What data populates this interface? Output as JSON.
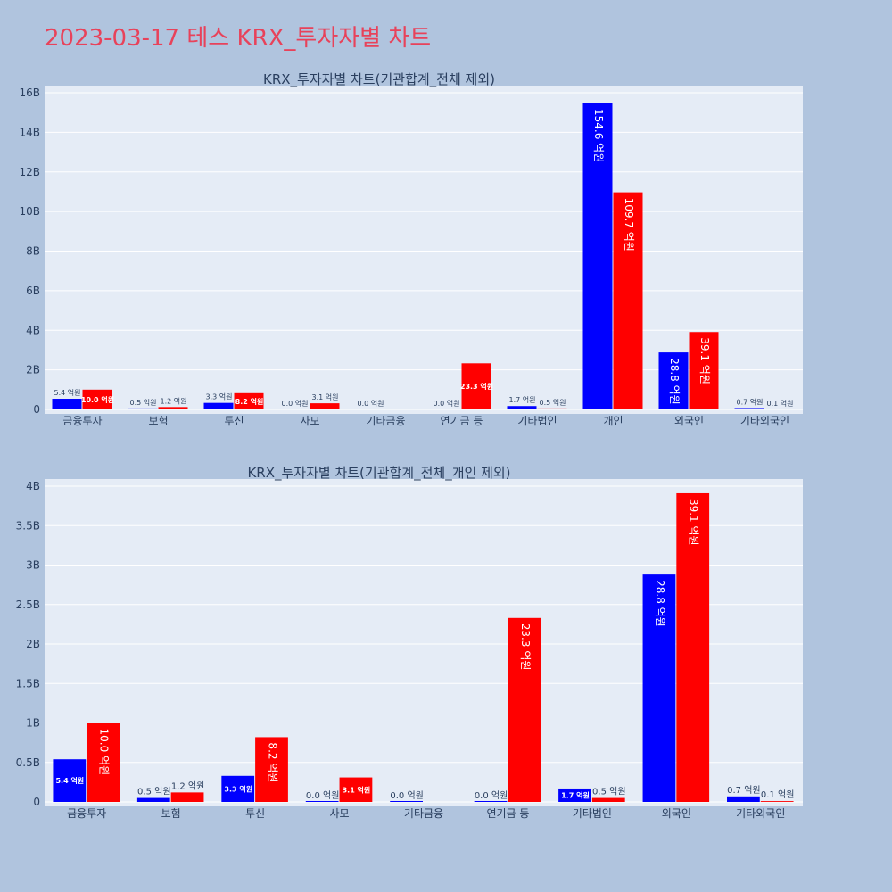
{
  "page": {
    "title": "2023-03-17 테스 KRX_투자자별 차트"
  },
  "colors": {
    "background": "#b0c4de",
    "plot_bg": "#e5ecf6",
    "buy": "#0000ff",
    "sell": "#ff0000",
    "title": "#e8425a",
    "text": "#2a3f5f"
  },
  "chart_data": [
    {
      "type": "bar",
      "title": "KRX_투자자별 차트(기관합계_전체 제외)",
      "categories": [
        "금융투자",
        "보험",
        "투신",
        "사모",
        "기타금융",
        "연기금 등",
        "기타법인",
        "개인",
        "외국인",
        "기타외국인"
      ],
      "series": [
        {
          "color": "#0000ff",
          "values": [
            540000000,
            50000000,
            330000000,
            0,
            0,
            0,
            170000000,
            15460000000,
            2880000000,
            70000000
          ],
          "labels": [
            "5.4 억원",
            "0.5 억원",
            "3.3 억원",
            "0.0 억원",
            "0.0 억원",
            "0.0 억원",
            "1.7 억원",
            "154.6 억원",
            "28.8 억원",
            "0.7 억원"
          ]
        },
        {
          "color": "#ff0000",
          "values": [
            1000000000,
            120000000,
            820000000,
            310000000,
            null,
            2330000000,
            50000000,
            10970000000,
            3910000000,
            10000000
          ],
          "labels": [
            "10.0 억원",
            "1.2 억원",
            "8.2 억원",
            "3.1 억원",
            "",
            "23.3 억원",
            "0.5 억원",
            "109.7 억원",
            "39.1 억원",
            "0.1 억원"
          ]
        }
      ],
      "ylim": [
        0,
        16000000000
      ],
      "yticks": [
        0,
        2000000000,
        4000000000,
        6000000000,
        8000000000,
        10000000000,
        12000000000,
        14000000000,
        16000000000
      ],
      "ytick_labels": [
        "0",
        "2B",
        "4B",
        "6B",
        "8B",
        "10B",
        "12B",
        "14B",
        "16B"
      ],
      "grid": true,
      "legend": "none"
    },
    {
      "type": "bar",
      "title": "KRX_투자자별 차트(기관합계_전체_개인 제외)",
      "categories": [
        "금융투자",
        "보험",
        "투신",
        "사모",
        "기타금융",
        "연기금 등",
        "기타법인",
        "외국인",
        "기타외국인"
      ],
      "series": [
        {
          "color": "#0000ff",
          "values": [
            540000000,
            50000000,
            330000000,
            0,
            0,
            0,
            170000000,
            2880000000,
            70000000
          ],
          "labels": [
            "5.4 억원",
            "0.5 억원",
            "3.3 억원",
            "0.0 억원",
            "0.0 억원",
            "0.0 억원",
            "1.7 억원",
            "28.8 억원",
            "0.7 억원"
          ]
        },
        {
          "color": "#ff0000",
          "values": [
            1000000000,
            120000000,
            820000000,
            310000000,
            null,
            2330000000,
            50000000,
            3910000000,
            10000000
          ],
          "labels": [
            "10.0 억원",
            "1.2 억원",
            "8.2 억원",
            "3.1 억원",
            "",
            "23.3 억원",
            "0.5 억원",
            "39.1 억원",
            "0.1 억원"
          ]
        }
      ],
      "ylim": [
        0,
        4000000000
      ],
      "yticks": [
        0,
        500000000,
        1000000000,
        1500000000,
        2000000000,
        2500000000,
        3000000000,
        3500000000,
        4000000000
      ],
      "ytick_labels": [
        "0",
        "0.5B",
        "1B",
        "1.5B",
        "2B",
        "2.5B",
        "3B",
        "3.5B",
        "4B"
      ],
      "grid": true,
      "legend": "none"
    }
  ]
}
